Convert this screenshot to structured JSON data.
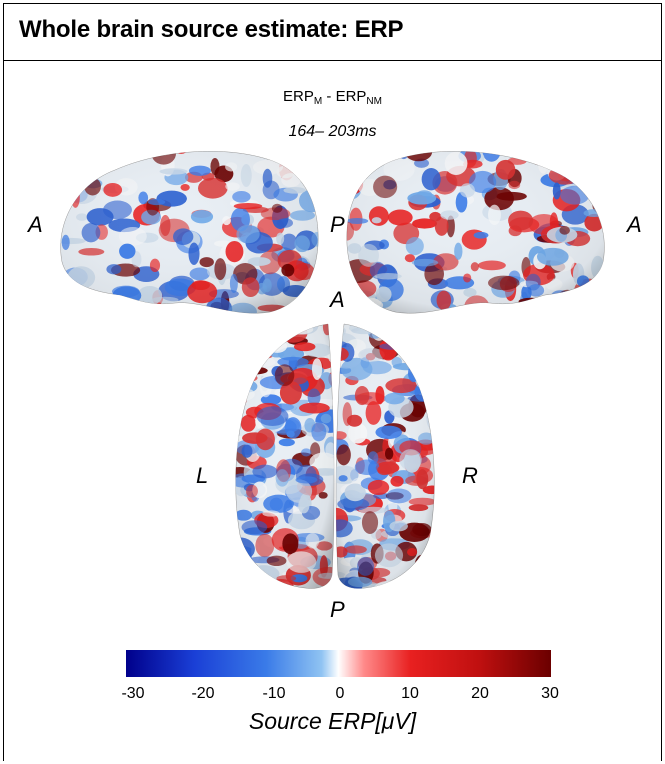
{
  "header": {
    "title": "Whole brain source estimate: ERP"
  },
  "contrast": {
    "main_a": "ERP",
    "sub_a": "M",
    "separator": " - ",
    "main_b": "ERP",
    "sub_b": "NM"
  },
  "time_window": "164– 203ms",
  "orientation": {
    "left_view_anterior": "A",
    "left_view_posterior": "P",
    "right_view_anterior": "A",
    "top_view_anterior": "A",
    "top_view_posterior": "P",
    "top_view_left": "L",
    "top_view_right": "R"
  },
  "colorbar": {
    "min": -30,
    "max": 30,
    "ticks": [
      "-30",
      "-20",
      "-10",
      "0",
      "10",
      "20",
      "30"
    ],
    "label": "Source ERP[μV]",
    "colors": {
      "neg_max": "#00008b",
      "neg_mid": "#3a7be8",
      "zero": "#ffffff",
      "pos_mid": "#e82020",
      "pos_max": "#6b0000"
    }
  }
}
